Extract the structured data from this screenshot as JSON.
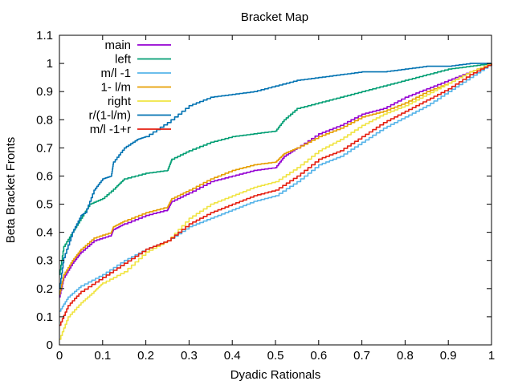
{
  "chart_data": {
    "type": "line",
    "title": "Bracket Map",
    "xlabel": "Dyadic Rationals",
    "ylabel": "Beta Bracket Fronts",
    "xlim": [
      0,
      1
    ],
    "ylim": [
      0,
      1.1
    ],
    "xticks": [
      0,
      0.1,
      0.2,
      0.3,
      0.4,
      0.5,
      0.6,
      0.7,
      0.8,
      0.9,
      1
    ],
    "xtick_labels": [
      "0",
      "0.1",
      "0.2",
      "0.3",
      "0.4",
      "0.5",
      "0.6",
      "0.7",
      "0.8",
      "0.9",
      "1"
    ],
    "yticks": [
      0,
      0.1,
      0.2,
      0.3,
      0.4,
      0.5,
      0.6,
      0.7,
      0.8,
      0.9,
      1,
      1.1
    ],
    "ytick_labels": [
      "0",
      "0.1",
      "0.2",
      "0.3",
      "0.4",
      "0.5",
      "0.6",
      "0.7",
      "0.8",
      "0.9",
      "1",
      "1.1"
    ],
    "grid": false,
    "legend_position": "top-left",
    "series": [
      {
        "name": "main",
        "color": "#9400d3",
        "x": [
          0,
          0.01,
          0.03,
          0.05,
          0.08,
          0.12,
          0.125,
          0.15,
          0.2,
          0.25,
          0.26,
          0.3,
          0.35,
          0.4,
          0.45,
          0.5,
          0.52,
          0.55,
          0.6,
          0.65,
          0.7,
          0.75,
          0.8,
          0.85,
          0.9,
          0.95,
          1
        ],
        "y": [
          0.17,
          0.24,
          0.29,
          0.33,
          0.37,
          0.39,
          0.41,
          0.43,
          0.46,
          0.48,
          0.51,
          0.54,
          0.58,
          0.6,
          0.62,
          0.63,
          0.67,
          0.7,
          0.75,
          0.78,
          0.82,
          0.84,
          0.88,
          0.91,
          0.94,
          0.97,
          1
        ]
      },
      {
        "name": "left",
        "color": "#009e73",
        "x": [
          0,
          0.01,
          0.03,
          0.05,
          0.07,
          0.1,
          0.13,
          0.15,
          0.2,
          0.25,
          0.26,
          0.3,
          0.35,
          0.4,
          0.45,
          0.5,
          0.52,
          0.55,
          0.6,
          0.65,
          0.7,
          0.75,
          0.8,
          0.85,
          0.9,
          0.95,
          1
        ],
        "y": [
          0.25,
          0.35,
          0.4,
          0.45,
          0.5,
          0.52,
          0.56,
          0.59,
          0.61,
          0.62,
          0.66,
          0.69,
          0.72,
          0.74,
          0.75,
          0.76,
          0.8,
          0.84,
          0.86,
          0.88,
          0.9,
          0.92,
          0.94,
          0.96,
          0.98,
          0.99,
          1
        ]
      },
      {
        "name": "m/l -1",
        "color": "#56b4e9",
        "x": [
          0,
          0.02,
          0.05,
          0.1,
          0.15,
          0.2,
          0.25,
          0.3,
          0.35,
          0.4,
          0.45,
          0.5,
          0.55,
          0.6,
          0.65,
          0.7,
          0.75,
          0.8,
          0.85,
          0.9,
          0.95,
          1
        ],
        "y": [
          0.12,
          0.17,
          0.21,
          0.25,
          0.3,
          0.34,
          0.37,
          0.42,
          0.45,
          0.48,
          0.51,
          0.53,
          0.58,
          0.64,
          0.67,
          0.72,
          0.77,
          0.81,
          0.85,
          0.9,
          0.95,
          1
        ]
      },
      {
        "name": "1- l/m",
        "color": "#e69f00",
        "x": [
          0,
          0.01,
          0.03,
          0.05,
          0.08,
          0.12,
          0.125,
          0.15,
          0.2,
          0.25,
          0.26,
          0.3,
          0.35,
          0.4,
          0.45,
          0.5,
          0.52,
          0.55,
          0.6,
          0.65,
          0.7,
          0.75,
          0.8,
          0.85,
          0.9,
          0.95,
          1
        ],
        "y": [
          0.18,
          0.25,
          0.3,
          0.34,
          0.38,
          0.4,
          0.42,
          0.44,
          0.47,
          0.49,
          0.52,
          0.55,
          0.59,
          0.62,
          0.64,
          0.65,
          0.68,
          0.7,
          0.74,
          0.77,
          0.81,
          0.83,
          0.86,
          0.9,
          0.93,
          0.97,
          1
        ]
      },
      {
        "name": "right",
        "color": "#f0e442",
        "x": [
          0,
          0.02,
          0.05,
          0.08,
          0.1,
          0.15,
          0.2,
          0.25,
          0.3,
          0.35,
          0.4,
          0.45,
          0.5,
          0.55,
          0.6,
          0.65,
          0.7,
          0.75,
          0.8,
          0.85,
          0.9,
          0.95,
          1
        ],
        "y": [
          0.02,
          0.1,
          0.15,
          0.19,
          0.22,
          0.26,
          0.33,
          0.37,
          0.45,
          0.5,
          0.53,
          0.56,
          0.58,
          0.63,
          0.69,
          0.73,
          0.78,
          0.82,
          0.85,
          0.89,
          0.93,
          0.97,
          1
        ]
      },
      {
        "name": "r/(1-l/m)",
        "color": "#0072b2",
        "x": [
          0,
          0.01,
          0.03,
          0.05,
          0.06,
          0.08,
          0.1,
          0.12,
          0.125,
          0.15,
          0.18,
          0.2,
          0.25,
          0.3,
          0.35,
          0.4,
          0.45,
          0.5,
          0.55,
          0.6,
          0.65,
          0.7,
          0.75,
          0.8,
          0.85,
          0.9,
          0.95,
          1
        ],
        "y": [
          0.2,
          0.31,
          0.4,
          0.46,
          0.47,
          0.55,
          0.59,
          0.6,
          0.65,
          0.7,
          0.73,
          0.74,
          0.79,
          0.85,
          0.88,
          0.89,
          0.9,
          0.92,
          0.94,
          0.95,
          0.96,
          0.97,
          0.97,
          0.98,
          0.99,
          0.99,
          1,
          1
        ]
      },
      {
        "name": "m/l -1+r",
        "color": "#e51e10",
        "x": [
          0,
          0.02,
          0.05,
          0.1,
          0.15,
          0.2,
          0.25,
          0.3,
          0.35,
          0.4,
          0.45,
          0.5,
          0.55,
          0.6,
          0.65,
          0.7,
          0.75,
          0.8,
          0.85,
          0.9,
          0.95,
          1
        ],
        "y": [
          0.07,
          0.14,
          0.19,
          0.24,
          0.29,
          0.34,
          0.37,
          0.43,
          0.47,
          0.5,
          0.53,
          0.55,
          0.6,
          0.66,
          0.69,
          0.74,
          0.79,
          0.83,
          0.87,
          0.91,
          0.96,
          1
        ]
      }
    ]
  }
}
